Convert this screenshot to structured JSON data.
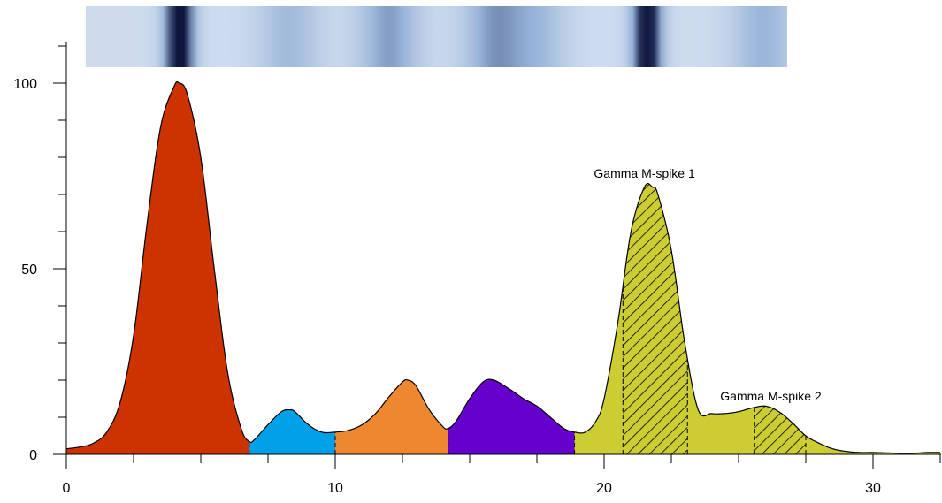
{
  "chart_data": {
    "type": "area",
    "title": "",
    "xlabel": "",
    "ylabel": "",
    "xlim": [
      0,
      32.5
    ],
    "ylim": [
      0,
      110
    ],
    "x_ticks": [
      0,
      10,
      20,
      30
    ],
    "x_tick_labels": [
      "0",
      "10",
      "20",
      "30"
    ],
    "y_ticks": [
      0,
      50,
      100
    ],
    "y_tick_labels": [
      "0",
      "50",
      "100"
    ],
    "grid": false,
    "curve": {
      "x": [
        0,
        0.5,
        1,
        1.5,
        2,
        2.5,
        3,
        3.5,
        4,
        4.2,
        4.5,
        5,
        5.5,
        6,
        6.5,
        6.8,
        7,
        7.5,
        8,
        8.3,
        8.5,
        9,
        9.5,
        10,
        10.5,
        11,
        11.5,
        12,
        12.5,
        12.7,
        13,
        13.5,
        14,
        14.2,
        14.5,
        15,
        15.5,
        15.9,
        16.5,
        17,
        17.5,
        18,
        18.5,
        18.9,
        19.3,
        19.7,
        20,
        20.5,
        21,
        21.5,
        21.8,
        22,
        22.5,
        23,
        23.5,
        24,
        24.5,
        25,
        25.5,
        26,
        26.5,
        27,
        27.5,
        28,
        28.5,
        29,
        29.5,
        30,
        30.5,
        31,
        31.5,
        32,
        32.5
      ],
      "y": [
        1.5,
        2,
        3,
        6,
        14,
        32,
        62,
        88,
        99,
        100,
        97,
        80,
        50,
        22,
        7,
        3.5,
        4,
        8,
        11.5,
        12,
        11.5,
        8,
        6,
        6,
        6.5,
        8,
        11,
        15.5,
        19.5,
        20,
        18.5,
        12,
        7.5,
        7,
        9,
        15,
        19.5,
        20,
        17.5,
        15,
        13,
        10,
        7,
        6,
        6,
        9,
        15,
        35,
        60,
        72,
        72,
        70,
        55,
        30,
        12,
        11,
        11,
        11.5,
        12.5,
        13,
        11.5,
        8.5,
        5,
        3,
        1.5,
        0.8,
        0.5,
        0.5,
        0.4,
        0.3,
        0.3,
        0.5,
        0.5
      ]
    },
    "fractions": [
      {
        "x_range": [
          0,
          6.8
        ],
        "color": "#cc3300"
      },
      {
        "x_range": [
          6.8,
          10
        ],
        "color": "#00a0e9"
      },
      {
        "x_range": [
          10,
          14.2
        ],
        "color": "#ee8830"
      },
      {
        "x_range": [
          14.2,
          18.9
        ],
        "color": "#6600cc"
      },
      {
        "x_range": [
          18.9,
          32.5
        ],
        "color": "#cccc33"
      }
    ],
    "hatched_regions": [
      {
        "x_range": [
          20.7,
          23.1
        ],
        "label": "Gamma M-spike 1"
      },
      {
        "x_range": [
          25.6,
          27.5
        ],
        "label": "Gamma M-spike 2"
      }
    ],
    "annotations": [
      {
        "text": "Gamma M-spike 1",
        "x": 21.5,
        "y": 74
      },
      {
        "text": "Gamma M-spike 2",
        "x": 26.2,
        "y": 14
      }
    ]
  },
  "gel_strip": {
    "bands": [
      {
        "x": 4.2,
        "darkness": 1.0
      },
      {
        "x": 8.3,
        "darkness": 0.3
      },
      {
        "x": 12.0,
        "darkness": 0.45
      },
      {
        "x": 15.9,
        "darkness": 0.45
      },
      {
        "x": 17.5,
        "darkness": 0.3
      },
      {
        "x": 21.6,
        "darkness": 1.0
      },
      {
        "x": 25.9,
        "darkness": 0.35
      }
    ]
  }
}
